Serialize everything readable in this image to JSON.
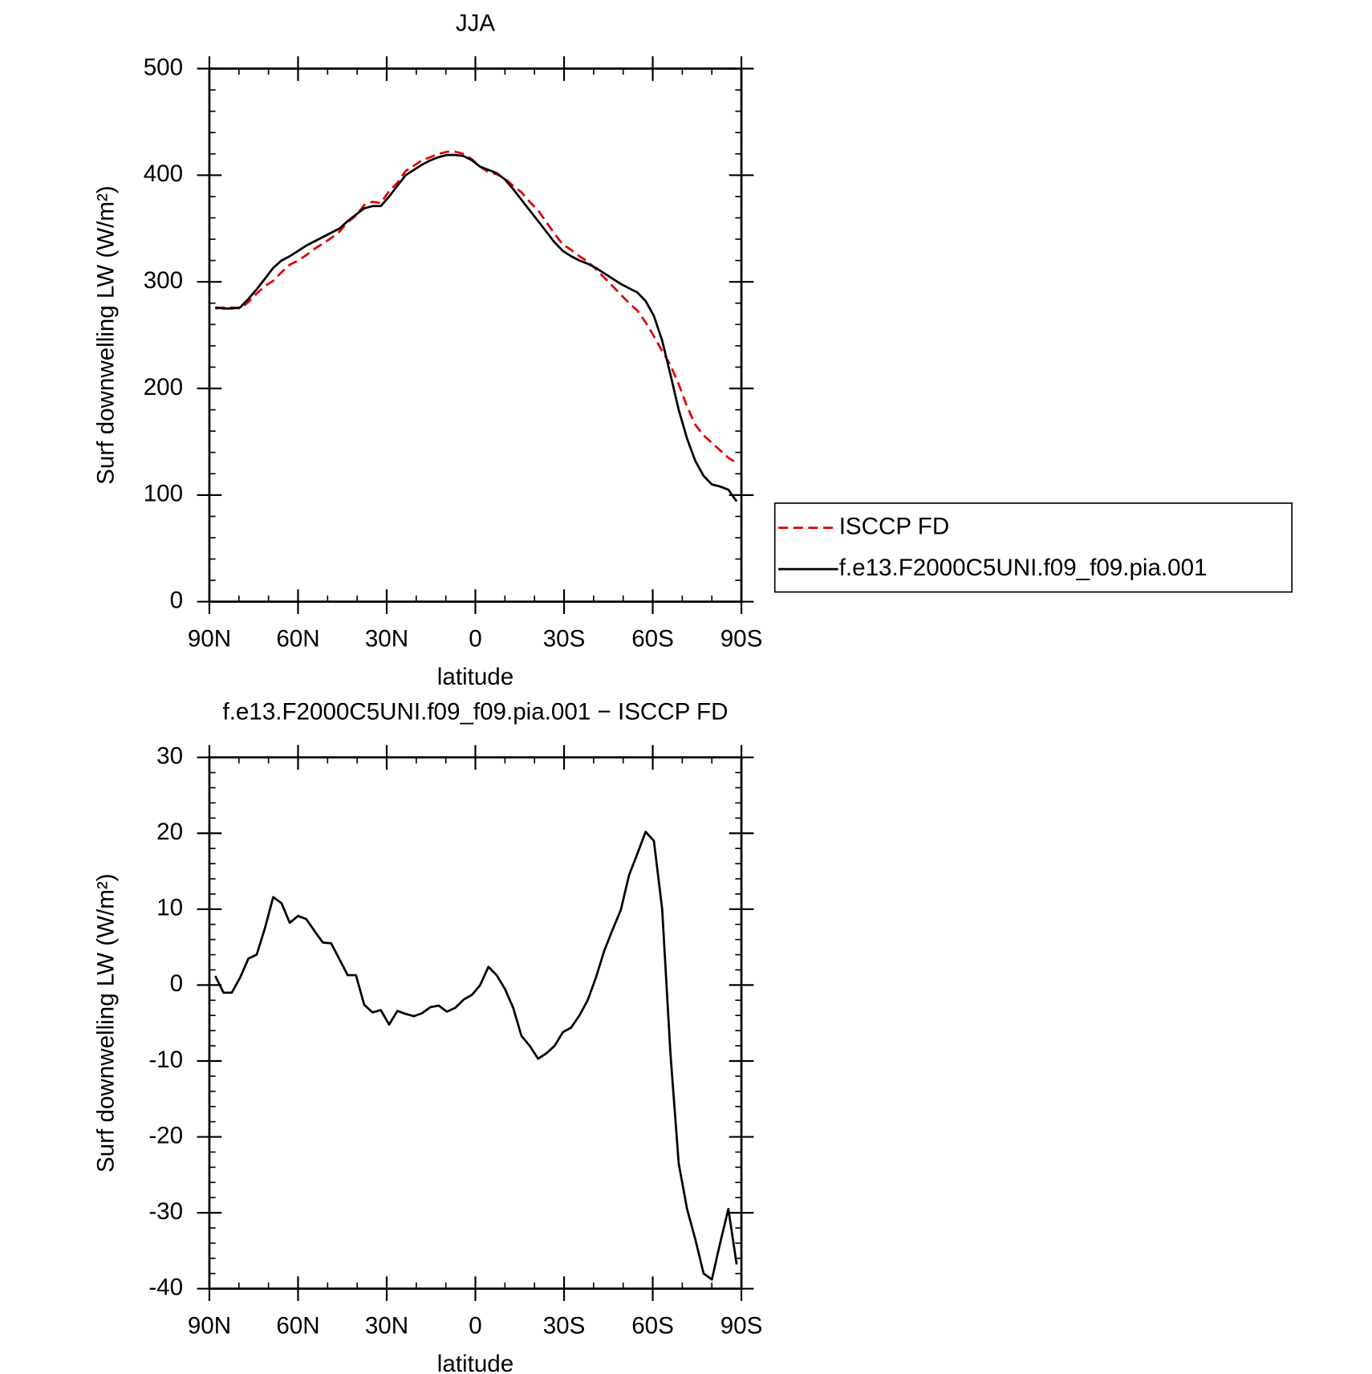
{
  "chart_data": [
    {
      "type": "line",
      "title": "JJA",
      "xlabel": "latitude",
      "ylabel": "Surf downwelling LW (W/m²)",
      "x": [
        88,
        85.2,
        82.4,
        79.6,
        76.8,
        74,
        71.2,
        68.4,
        65.6,
        62.8,
        60,
        57.2,
        54.4,
        51.6,
        48.8,
        46,
        43.2,
        40.4,
        37.6,
        34.8,
        32,
        29.2,
        26.4,
        23.6,
        20.8,
        18,
        15.2,
        12.4,
        9.6,
        6.8,
        4,
        1.2,
        -1.6,
        -4.4,
        -7.2,
        -10,
        -12.8,
        -15.6,
        -18.4,
        -21.2,
        -24,
        -26.8,
        -29.6,
        -32.4,
        -35.2,
        -38,
        -40.8,
        -43.6,
        -46.4,
        -49.2,
        -52,
        -54.8,
        -57.6,
        -60.4,
        -63.2,
        -66,
        -68.8,
        -71.6,
        -74.4,
        -77.2,
        -80,
        -82.8,
        -85.6,
        -88.4
      ],
      "series": [
        {
          "name": "ISCCP FD",
          "color": "#e00000",
          "dashed": true,
          "values": [
            275,
            276,
            276,
            275,
            281,
            289,
            296,
            301,
            309,
            316,
            320,
            325,
            331,
            336,
            341,
            347,
            356,
            362,
            372,
            375,
            374,
            385,
            393,
            404,
            409,
            414,
            417,
            420,
            422,
            422,
            420,
            415,
            408,
            403,
            401,
            397,
            390,
            384,
            375,
            367,
            356,
            345,
            335,
            330,
            324,
            319,
            312,
            304,
            296,
            288,
            280,
            273,
            262,
            249,
            235,
            222,
            204,
            183,
            166,
            156,
            149,
            142,
            135,
            130
          ]
        },
        {
          "name": "f.e13.F2000C5UNI.f09_f09.pia.001",
          "color": "#000000",
          "dashed": false,
          "values": [
            276,
            275,
            275,
            276,
            284,
            293,
            303,
            313,
            320,
            324,
            329,
            334,
            338,
            342,
            346,
            350,
            357,
            363,
            369,
            371,
            371,
            380,
            390,
            400,
            405,
            410,
            414,
            417,
            419,
            419,
            418,
            414,
            408,
            405,
            402,
            396,
            387,
            377,
            367,
            357,
            347,
            337,
            329,
            324,
            320,
            317,
            313,
            308,
            303,
            298,
            294,
            290,
            282,
            268,
            245,
            213,
            180,
            153,
            132,
            118,
            110,
            108,
            105,
            94
          ]
        }
      ],
      "xlim": [
        90,
        -90
      ],
      "xticks": [
        {
          "value": 90,
          "label": "90N"
        },
        {
          "value": 60,
          "label": "60N"
        },
        {
          "value": 30,
          "label": "30N"
        },
        0,
        {
          "value": -30,
          "label": "30S"
        },
        {
          "value": -60,
          "label": "60S"
        },
        {
          "value": -90,
          "label": "90S"
        }
      ],
      "ylim": [
        0,
        500
      ],
      "yticks": [
        0,
        100,
        200,
        300,
        400,
        500
      ],
      "legend": "right"
    },
    {
      "type": "line",
      "title": "f.e13.F2000C5UNI.f09_f09.pia.001 − ISCCP FD",
      "xlabel": "latitude",
      "ylabel": "Surf downwelling LW (W/m²)",
      "x": [
        88,
        85.2,
        82.4,
        79.6,
        76.8,
        74,
        71.2,
        68.4,
        65.6,
        62.8,
        60,
        57.2,
        54.4,
        51.6,
        48.8,
        46,
        43.2,
        40.4,
        37.6,
        34.8,
        32,
        29.2,
        26.4,
        23.6,
        20.8,
        18,
        15.2,
        12.4,
        9.6,
        6.8,
        4,
        1.2,
        -1.6,
        -4.4,
        -7.2,
        -10,
        -12.8,
        -15.6,
        -18.4,
        -21.2,
        -24,
        -26.8,
        -29.6,
        -32.4,
        -35.2,
        -38,
        -40.8,
        -43.6,
        -46.4,
        -49.2,
        -52,
        -54.8,
        -57.6,
        -60.4,
        -63.2,
        -66,
        -68.8,
        -71.6,
        -74.4,
        -77.2,
        -80,
        -82.8,
        -85.6,
        -88.4
      ],
      "series": [
        {
          "color": "#000000",
          "dashed": false,
          "values": [
            1.2,
            -1,
            -1,
            1,
            3.5,
            4,
            7.5,
            11.6,
            10.8,
            8.2,
            9.1,
            8.7,
            7.1,
            5.6,
            5.5,
            3.4,
            1.3,
            1.3,
            -2.6,
            -3.6,
            -3.3,
            -5.2,
            -3.4,
            -3.8,
            -4.1,
            -3.7,
            -2.9,
            -2.7,
            -3.5,
            -3,
            -1.9,
            -1.3,
            0,
            2.4,
            1.3,
            -0.5,
            -3,
            -6.7,
            -8,
            -9.7,
            -9,
            -8,
            -6.2,
            -5.6,
            -4,
            -2,
            1,
            4.5,
            7.3,
            9.9,
            14.5,
            17.3,
            20.2,
            19,
            10,
            -9,
            -23.5,
            -29.5,
            -33.5,
            -38,
            -38.8,
            -34,
            -29.5,
            -36.8
          ]
        }
      ],
      "xlim": [
        90,
        -90
      ],
      "xticks": [
        {
          "value": 90,
          "label": "90N"
        },
        {
          "value": 60,
          "label": "60N"
        },
        {
          "value": 30,
          "label": "30N"
        },
        0,
        {
          "value": -30,
          "label": "30S"
        },
        {
          "value": -60,
          "label": "60S"
        },
        {
          "value": -90,
          "label": "90S"
        }
      ],
      "ylim": [
        -40,
        30
      ],
      "yticks": [
        -40,
        -30,
        -20,
        -10,
        0,
        10,
        20,
        30
      ]
    }
  ]
}
